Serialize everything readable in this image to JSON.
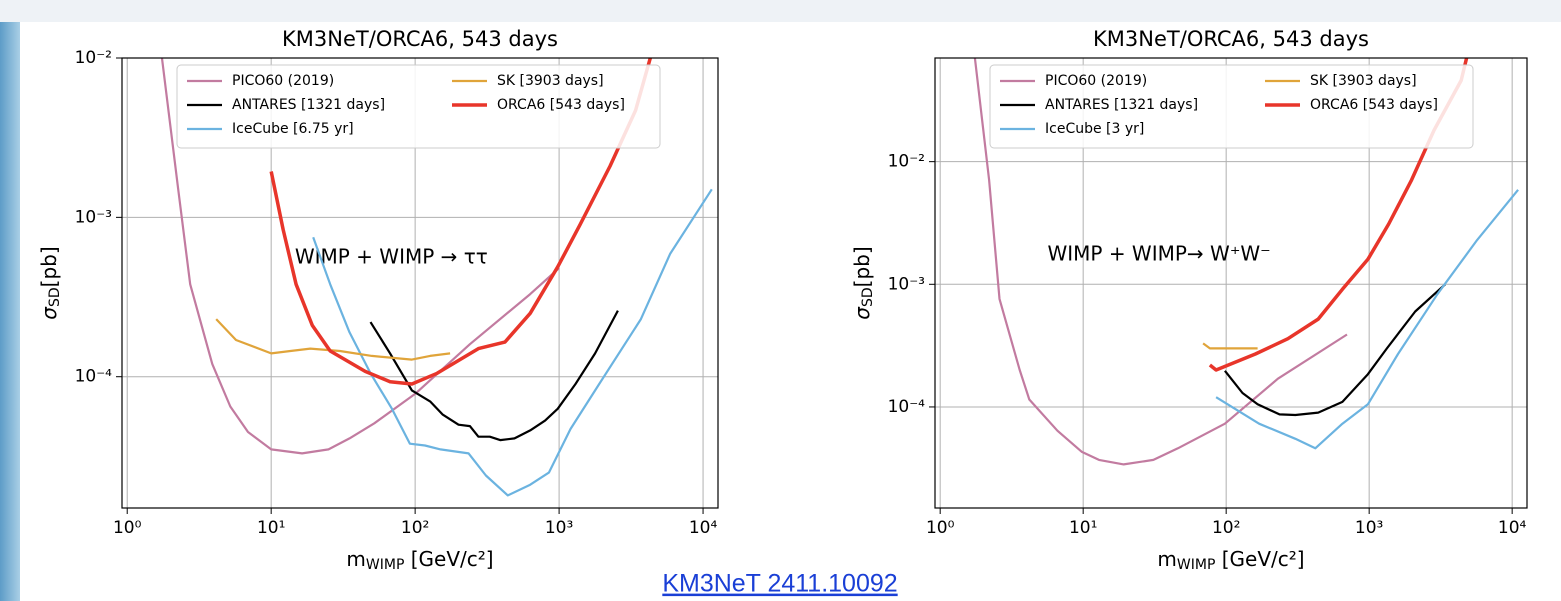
{
  "chart_data": [
    {
      "type": "line",
      "title": "KM3NeT/ORCA6, 543 days",
      "xlabel": {
        "text": "m",
        "sub": "WIMP",
        "rest": " [GeV/c²]"
      },
      "ylabel": {
        "text": "σ",
        "sub": "SD",
        "rest": "[pb]"
      },
      "annotation": "WIMP + WIMP  → ττ",
      "xscale": "log",
      "yscale": "log",
      "grid": true,
      "legend": "top",
      "xlim": [
        0.92,
        12700
      ],
      "ylim": [
        1.5e-05,
        0.01
      ],
      "xticks": [
        {
          "value": 1,
          "label": "10⁰"
        },
        {
          "value": 10,
          "label": "10¹"
        },
        {
          "value": 100,
          "label": "10²"
        },
        {
          "value": 1000,
          "label": "10³"
        },
        {
          "value": 10000,
          "label": "10⁴"
        }
      ],
      "yticks": [
        {
          "value": 0.0001,
          "label": "10⁻⁴"
        },
        {
          "value": 0.001,
          "label": "10⁻³"
        },
        {
          "value": 0.01,
          "label": "10⁻²"
        }
      ],
      "series": [
        {
          "name": "PICO60 (2019)",
          "color": "#c27ba0",
          "x": [
            1.7,
            2.26,
            2.74,
            3.9,
            5.2,
            6.9,
            10,
            16.4,
            25,
            35,
            52,
            100,
            240,
            630,
            1000
          ],
          "values": [
            0.012,
            0.0015,
            0.00038,
            0.00012,
            6.5e-05,
            4.5e-05,
            3.5e-05,
            3.3e-05,
            3.5e-05,
            4.1e-05,
            5.1e-05,
            7.8e-05,
            0.00016,
            0.00033,
            0.00048
          ]
        },
        {
          "name": "ANTARES [1321 days]",
          "color": "#000000",
          "x": [
            49,
            67,
            95,
            127,
            155,
            200,
            240,
            275,
            330,
            390,
            490,
            630,
            800,
            980,
            1300,
            1780,
            2560
          ],
          "values": [
            0.00022,
            0.00014,
            8.2e-05,
            7e-05,
            5.8e-05,
            5e-05,
            4.9e-05,
            4.2e-05,
            4.2e-05,
            4e-05,
            4.1e-05,
            4.6e-05,
            5.3e-05,
            6.3e-05,
            9e-05,
            0.00014,
            0.00026
          ]
        },
        {
          "name": "IceCube [6.75 yr]",
          "color": "#6bb3e0",
          "x": [
            19.6,
            25.7,
            35,
            49,
            69,
            92,
            117,
            150,
            235,
            310,
            440,
            630,
            850,
            1200,
            1900,
            3700,
            5900,
            11500
          ],
          "values": [
            0.00075,
            0.00038,
            0.00019,
            0.000105,
            6.3e-05,
            3.8e-05,
            3.7e-05,
            3.5e-05,
            3.3e-05,
            2.4e-05,
            1.8e-05,
            2.1e-05,
            2.5e-05,
            4.7e-05,
            9e-05,
            0.00023,
            0.00059,
            0.0015
          ]
        },
        {
          "name": "SK [3903 days]",
          "color": "#e0a43a",
          "x": [
            4.15,
            5.7,
            10,
            13.6,
            18.7,
            30,
            50,
            95,
            127,
            175
          ],
          "values": [
            0.00023,
            0.00017,
            0.00014,
            0.000145,
            0.00015,
            0.000145,
            0.000135,
            0.000128,
            0.000135,
            0.00014
          ]
        },
        {
          "name": "ORCA6 [543 days]",
          "color": "#e8352a",
          "x": [
            10,
            12.1,
            14.9,
            19.3,
            25.7,
            45,
            67,
            95,
            142,
            275,
            420,
            630,
            980,
            1400,
            2260,
            3400,
            4300,
            4700
          ],
          "values": [
            0.00194,
            0.00084,
            0.00038,
            0.00021,
            0.000145,
            0.000108,
            9.3e-05,
            9e-05,
            0.000105,
            0.00015,
            0.000165,
            0.00025,
            0.00049,
            0.0009,
            0.0021,
            0.0047,
            0.01,
            0.013
          ]
        }
      ]
    },
    {
      "type": "line",
      "title": "KM3NeT/ORCA6, 543 days",
      "xlabel": {
        "text": "m",
        "sub": "WIMP",
        "rest": " [GeV/c²]"
      },
      "ylabel": {
        "text": "σ",
        "sub": "SD",
        "rest": "[pb]"
      },
      "annotation": "WIMP + WIMP→  W⁺W⁻",
      "xscale": "log",
      "yscale": "log",
      "grid": true,
      "legend": "top",
      "xlim": [
        0.92,
        12700
      ],
      "ylim": [
        1.5e-05,
        0.07
      ],
      "xticks": [
        {
          "value": 1,
          "label": "10⁰"
        },
        {
          "value": 10,
          "label": "10¹"
        },
        {
          "value": 100,
          "label": "10²"
        },
        {
          "value": 1000,
          "label": "10³"
        },
        {
          "value": 10000,
          "label": "10⁴"
        }
      ],
      "yticks": [
        {
          "value": 0.0001,
          "label": "10⁻⁴"
        },
        {
          "value": 0.001,
          "label": "10⁻³"
        },
        {
          "value": 0.01,
          "label": "10⁻²"
        }
      ],
      "series": [
        {
          "name": "PICO60 (2019)",
          "color": "#c27ba0",
          "x": [
            1.75,
            2.2,
            2.6,
            3.6,
            4.2,
            6.6,
            9.8,
            12.9,
            19.2,
            31,
            46,
            98,
            230,
            700
          ],
          "values": [
            0.07,
            0.0071,
            0.00076,
            0.0002,
            0.000115,
            6.4e-05,
            4.3e-05,
            3.7e-05,
            3.4e-05,
            3.7e-05,
            4.6e-05,
            7.3e-05,
            0.00017,
            0.00039
          ]
        },
        {
          "name": "ANTARES [1321 days]",
          "color": "#000000",
          "x": [
            98,
            130,
            166,
            236,
            305,
            440,
            650,
            980,
            1330,
            2100,
            3400
          ],
          "values": [
            0.000197,
            0.00013,
            0.000105,
            8.7e-05,
            8.6e-05,
            9e-05,
            0.00011,
            0.000185,
            0.0003,
            0.0006,
            0.001
          ]
        },
        {
          "name": "IceCube [3 yr]",
          "color": "#6bb3e0",
          "x": [
            85,
            170,
            305,
            420,
            650,
            980,
            1590,
            3000,
            5700,
            11000
          ],
          "values": [
            0.00012,
            7.3e-05,
            5.5e-05,
            4.6e-05,
            7.3e-05,
            0.000105,
            0.00027,
            0.00083,
            0.0023,
            0.0059
          ]
        },
        {
          "name": "SK [3903 days]",
          "color": "#e0a43a",
          "x": [
            69,
            77,
            166
          ],
          "values": [
            0.00033,
            0.0003,
            0.0003
          ]
        },
        {
          "name": "ORCA6 [543 days]",
          "color": "#e8352a",
          "x": [
            77,
            85,
            160,
            270,
            440,
            650,
            980,
            1370,
            1980,
            2840,
            4400,
            4800
          ],
          "values": [
            0.00022,
            0.0002,
            0.00027,
            0.00036,
            0.00052,
            0.00091,
            0.0016,
            0.0031,
            0.0071,
            0.018,
            0.046,
            0.07
          ]
        }
      ]
    }
  ],
  "link": "KM3NeT 2411.10092"
}
